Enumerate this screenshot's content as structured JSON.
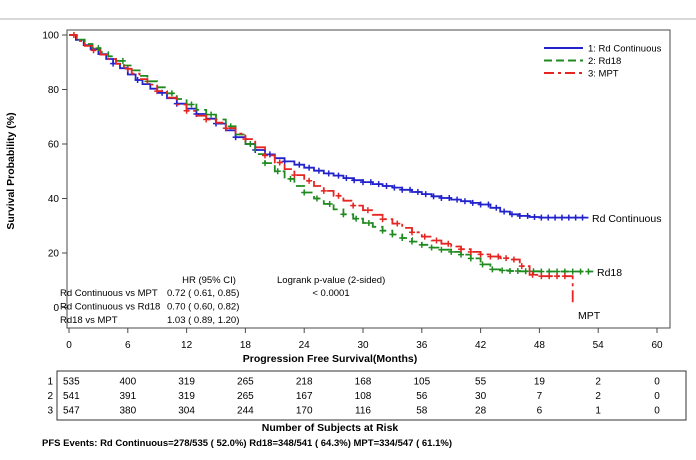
{
  "chart_data": {
    "type": "line",
    "subtype": "kaplan-meier-step",
    "title": "",
    "xlabel": "Progression Free Survival(Months)",
    "ylabel": "Survival Probability (%)",
    "xlim": [
      0,
      60
    ],
    "ylim": [
      0,
      100
    ],
    "x_ticks": [
      0,
      6,
      12,
      18,
      24,
      30,
      36,
      42,
      48,
      54,
      60
    ],
    "y_ticks": [
      0,
      20,
      40,
      60,
      80,
      100
    ],
    "grid": false,
    "legend_position": "top-right-inside",
    "series": [
      {
        "name": "Rd Continuous",
        "legend_label": "1: Rd Continuous",
        "end_label": "Rd Continuous",
        "color": "#2222cc",
        "dash": "solid",
        "points": [
          [
            0,
            100
          ],
          [
            0.7,
            98.2
          ],
          [
            1.5,
            96.3
          ],
          [
            2.2,
            94.8
          ],
          [
            3,
            93
          ],
          [
            3.8,
            91.2
          ],
          [
            4.5,
            89.5
          ],
          [
            5.2,
            87.8
          ],
          [
            6,
            85.5
          ],
          [
            6.8,
            83.5
          ],
          [
            7.5,
            82
          ],
          [
            8.3,
            80.3
          ],
          [
            9,
            78.8
          ],
          [
            10,
            76.8
          ],
          [
            11,
            74.8
          ],
          [
            12,
            73
          ],
          [
            13,
            71
          ],
          [
            14,
            69.3
          ],
          [
            15,
            67.5
          ],
          [
            16,
            65
          ],
          [
            17,
            62.5
          ],
          [
            18,
            60
          ],
          [
            19,
            57.8
          ],
          [
            20,
            56.2
          ],
          [
            21,
            54.8
          ],
          [
            22,
            53.6
          ],
          [
            23,
            52.4
          ],
          [
            24,
            51.3
          ],
          [
            25,
            50.2
          ],
          [
            26,
            49.2
          ],
          [
            27,
            48.4
          ],
          [
            28,
            47.5
          ],
          [
            29,
            46.7
          ],
          [
            30,
            46
          ],
          [
            31,
            45.3
          ],
          [
            32,
            44.6
          ],
          [
            33,
            44
          ],
          [
            34,
            43.2
          ],
          [
            35,
            42.4
          ],
          [
            36,
            41.6
          ],
          [
            37,
            40.8
          ],
          [
            38,
            40.2
          ],
          [
            39,
            39.6
          ],
          [
            40,
            39
          ],
          [
            41,
            38.4
          ],
          [
            42,
            37.8
          ],
          [
            43,
            36.6
          ],
          [
            44,
            35.2
          ],
          [
            45,
            34.2
          ],
          [
            46,
            33.6
          ],
          [
            47,
            33.2
          ],
          [
            48,
            33
          ],
          [
            53,
            33
          ]
        ],
        "censor_months": [
          4.5,
          7,
          9.5,
          11,
          13,
          15,
          17,
          19,
          20.5,
          22,
          23.5,
          24.5,
          25.5,
          26.5,
          27.5,
          28.3,
          29.1,
          30,
          30.8,
          31.6,
          32.4,
          33.2,
          34,
          34.8,
          35.6,
          36.4,
          37.2,
          38,
          38.8,
          39.6,
          40.4,
          41.2,
          42,
          42.8,
          43.6,
          44.4,
          45.2,
          46,
          46.8,
          47.5,
          48.2,
          48.9,
          49.6,
          50.3,
          51,
          51.7,
          52.4
        ]
      },
      {
        "name": "Rd18",
        "legend_label": "2: Rd18",
        "end_label": "Rd18",
        "color": "#1f8a1f",
        "dash": "dashed",
        "points": [
          [
            0,
            100
          ],
          [
            0.8,
            98.3
          ],
          [
            1.6,
            96.7
          ],
          [
            2.4,
            95.2
          ],
          [
            3.2,
            93.7
          ],
          [
            4,
            92.2
          ],
          [
            4.8,
            90.5
          ],
          [
            5.6,
            88.8
          ],
          [
            6.4,
            87
          ],
          [
            7.2,
            85
          ],
          [
            8,
            83
          ],
          [
            9,
            80.8
          ],
          [
            10,
            78.6
          ],
          [
            11,
            76.5
          ],
          [
            12,
            74.5
          ],
          [
            13,
            72.5
          ],
          [
            14,
            70.8
          ],
          [
            15,
            69
          ],
          [
            16,
            66.5
          ],
          [
            17,
            63.5
          ],
          [
            18,
            60
          ],
          [
            19,
            56.3
          ],
          [
            20,
            53
          ],
          [
            21,
            50
          ],
          [
            22,
            47.2
          ],
          [
            23,
            44.6
          ],
          [
            24,
            42.2
          ],
          [
            25,
            40
          ],
          [
            26,
            38
          ],
          [
            27,
            36
          ],
          [
            28,
            34.2
          ],
          [
            29,
            32.6
          ],
          [
            30,
            31
          ],
          [
            31,
            29.6
          ],
          [
            32,
            28.2
          ],
          [
            33,
            26.8
          ],
          [
            34,
            25.5
          ],
          [
            35,
            24.2
          ],
          [
            36,
            23
          ],
          [
            37,
            22
          ],
          [
            38,
            21.2
          ],
          [
            39,
            20.4
          ],
          [
            40,
            19.4
          ],
          [
            41,
            18
          ],
          [
            42,
            15.8
          ],
          [
            43,
            14
          ],
          [
            44,
            13.6
          ],
          [
            45,
            13.4
          ],
          [
            46,
            13.3
          ],
          [
            48,
            13.2
          ],
          [
            53.5,
            13.2
          ]
        ],
        "censor_months": [
          3,
          5.5,
          8,
          10.5,
          12.5,
          14.5,
          16.5,
          18.5,
          20,
          21.3,
          22.6,
          24,
          25.3,
          26.6,
          28,
          29.3,
          30.6,
          32,
          33,
          34,
          35,
          36,
          37,
          38,
          39,
          40,
          41,
          42.2,
          43.2,
          44.2,
          45,
          45.8,
          46.6,
          47.4,
          48.2,
          49,
          49.8,
          50.6,
          51.4,
          52.2,
          53
        ]
      },
      {
        "name": "MPT",
        "legend_label": "3: MPT",
        "end_label": "MPT",
        "color": "#e52521",
        "dash": "dashdot",
        "points": [
          [
            0,
            100
          ],
          [
            0.8,
            97.8
          ],
          [
            1.6,
            96
          ],
          [
            2.4,
            94.4
          ],
          [
            3.2,
            92.8
          ],
          [
            4,
            91.2
          ],
          [
            4.8,
            89.4
          ],
          [
            5.6,
            87.6
          ],
          [
            6.4,
            85.8
          ],
          [
            7.2,
            83.8
          ],
          [
            8,
            81.8
          ],
          [
            9,
            79.4
          ],
          [
            10,
            77
          ],
          [
            11,
            74.5
          ],
          [
            12,
            72.2
          ],
          [
            13,
            70.4
          ],
          [
            14,
            69
          ],
          [
            15,
            67.8
          ],
          [
            16,
            65.8
          ],
          [
            17,
            63.8
          ],
          [
            18,
            61.8
          ],
          [
            19,
            58.8
          ],
          [
            20,
            55.8
          ],
          [
            21,
            53.2
          ],
          [
            22,
            50.8
          ],
          [
            23,
            48.6
          ],
          [
            24,
            46.5
          ],
          [
            25,
            44.6
          ],
          [
            26,
            42.8
          ],
          [
            27,
            41
          ],
          [
            28,
            39.2
          ],
          [
            29,
            37.4
          ],
          [
            30,
            35.7
          ],
          [
            31,
            34
          ],
          [
            32,
            32.4
          ],
          [
            33,
            30.8
          ],
          [
            34,
            29.2
          ],
          [
            35,
            27.6
          ],
          [
            36,
            26
          ],
          [
            37,
            24.6
          ],
          [
            38,
            23.4
          ],
          [
            39,
            22.4
          ],
          [
            40,
            21.4
          ],
          [
            41,
            20.4
          ],
          [
            42,
            19.5
          ],
          [
            43,
            18.7
          ],
          [
            44,
            18.1
          ],
          [
            45,
            17.6
          ],
          [
            46,
            15.2
          ],
          [
            47,
            12
          ],
          [
            48,
            11.5
          ],
          [
            51.4,
            11.5
          ],
          [
            51.4,
            1.2
          ]
        ],
        "censor_months": [
          0.5,
          2.5,
          6,
          9,
          12,
          14,
          16,
          18,
          20,
          21.5,
          23,
          24.5,
          26,
          27.5,
          29,
          30.5,
          32,
          33.5,
          35,
          36.3,
          37.5,
          38.7,
          40,
          41,
          42,
          43,
          43.8,
          44.6,
          45.4,
          46.2,
          47.3,
          48.2,
          49,
          49.8,
          50.6
        ]
      }
    ]
  },
  "stats": {
    "hr_header": "HR (95% CI)",
    "logrank_header": "Logrank p-value (2-sided)",
    "logrank_value": "< 0.0001",
    "rows": [
      {
        "label": "Rd Continuous vs MPT",
        "value": "0.72 ( 0.61,  0.85)"
      },
      {
        "label": "Rd Continuous vs Rd18",
        "value": "0.70 ( 0.60,  0.82)"
      },
      {
        "label": "Rd18 vs MPT",
        "value": "1.03 ( 0.89,  1.20)"
      }
    ]
  },
  "at_risk": {
    "title": "Number of Subjects at Risk",
    "rows": [
      {
        "id": "1",
        "values": [
          535,
          400,
          319,
          265,
          218,
          168,
          105,
          55,
          19,
          2,
          0
        ]
      },
      {
        "id": "2",
        "values": [
          541,
          391,
          319,
          265,
          167,
          108,
          56,
          30,
          7,
          2,
          0
        ]
      },
      {
        "id": "3",
        "values": [
          547,
          380,
          304,
          244,
          170,
          116,
          58,
          28,
          6,
          1,
          0
        ]
      }
    ]
  },
  "footnote": "PFS Events: Rd Continuous=278/535 ( 52.0%) Rd18=348/541 ( 64.3%) MPT=334/547 ( 61.1%)"
}
